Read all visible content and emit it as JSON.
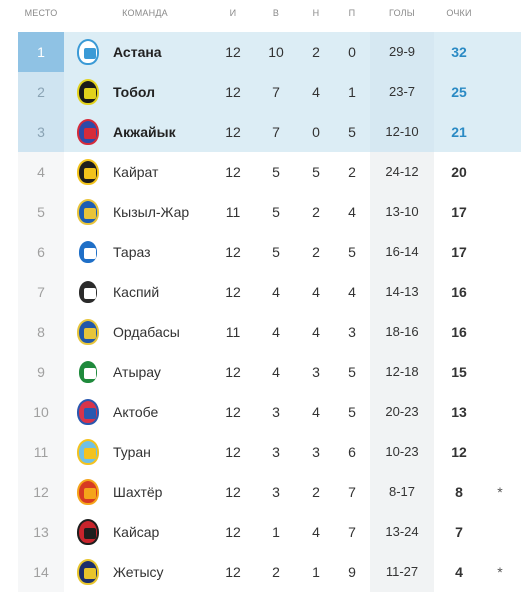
{
  "headers": {
    "place": "МЕСТО",
    "team": "КОМАНДА",
    "games": "И",
    "wins": "В",
    "draws": "Н",
    "losses": "П",
    "goals": "ГОЛЫ",
    "points": "ОЧКИ"
  },
  "rows": [
    {
      "place": "1",
      "team": "Астана",
      "games": "12",
      "wins": "10",
      "draws": "2",
      "losses": "0",
      "goals": "29-9",
      "points": "32",
      "note": "",
      "logo_icon": "astana-logo-icon",
      "logo_colors": [
        "#ffffff",
        "#3a9ad6"
      ]
    },
    {
      "place": "2",
      "team": "Тобол",
      "games": "12",
      "wins": "7",
      "draws": "4",
      "losses": "1",
      "goals": "23-7",
      "points": "25",
      "note": "",
      "logo_icon": "tobol-logo-icon",
      "logo_colors": [
        "#1a1a1a",
        "#e2d21c"
      ]
    },
    {
      "place": "3",
      "team": "Акжайык",
      "games": "12",
      "wins": "7",
      "draws": "0",
      "losses": "5",
      "goals": "12-10",
      "points": "21",
      "note": "",
      "logo_icon": "akzhayik-logo-icon",
      "logo_colors": [
        "#2e4aa8",
        "#d62b3a"
      ]
    },
    {
      "place": "4",
      "team": "Кайрат",
      "games": "12",
      "wins": "5",
      "draws": "5",
      "losses": "2",
      "goals": "24-12",
      "points": "20",
      "note": "",
      "logo_icon": "kairat-logo-icon",
      "logo_colors": [
        "#1e1e1e",
        "#f2c31b"
      ]
    },
    {
      "place": "5",
      "team": "Кызыл-Жар",
      "games": "11",
      "wins": "5",
      "draws": "2",
      "losses": "4",
      "goals": "13-10",
      "points": "17",
      "note": "",
      "logo_icon": "kyzylzhar-logo-icon",
      "logo_colors": [
        "#1d5db3",
        "#e9c43a"
      ]
    },
    {
      "place": "6",
      "team": "Тараз",
      "games": "12",
      "wins": "5",
      "draws": "2",
      "losses": "5",
      "goals": "16-14",
      "points": "17",
      "note": "",
      "logo_icon": "taraz-logo-icon",
      "logo_colors": [
        "#1f6fc7",
        "#ffffff"
      ]
    },
    {
      "place": "7",
      "team": "Каспий",
      "games": "12",
      "wins": "4",
      "draws": "4",
      "losses": "4",
      "goals": "14-13",
      "points": "16",
      "note": "",
      "logo_icon": "kaspiy-logo-icon",
      "logo_colors": [
        "#2b2b2b",
        "#ffffff"
      ]
    },
    {
      "place": "8",
      "team": "Ордабасы",
      "games": "11",
      "wins": "4",
      "draws": "4",
      "losses": "3",
      "goals": "18-16",
      "points": "16",
      "note": "",
      "logo_icon": "ordabasy-logo-icon",
      "logo_colors": [
        "#2157a8",
        "#e7c53b"
      ]
    },
    {
      "place": "9",
      "team": "Атырау",
      "games": "12",
      "wins": "4",
      "draws": "3",
      "losses": "5",
      "goals": "12-18",
      "points": "15",
      "note": "",
      "logo_icon": "atyrau-logo-icon",
      "logo_colors": [
        "#1f8a3c",
        "#ffffff"
      ]
    },
    {
      "place": "10",
      "team": "Актобе",
      "games": "12",
      "wins": "3",
      "draws": "4",
      "losses": "5",
      "goals": "20-23",
      "points": "13",
      "note": "",
      "logo_icon": "aktobe-logo-icon",
      "logo_colors": [
        "#d8344a",
        "#2a58b0"
      ]
    },
    {
      "place": "11",
      "team": "Туран",
      "games": "12",
      "wins": "3",
      "draws": "3",
      "losses": "6",
      "goals": "10-23",
      "points": "12",
      "note": "",
      "logo_icon": "turan-logo-icon",
      "logo_colors": [
        "#6fc0e6",
        "#f3c21f"
      ]
    },
    {
      "place": "12",
      "team": "Шахтёр",
      "games": "12",
      "wins": "3",
      "draws": "2",
      "losses": "7",
      "goals": "8-17",
      "points": "8",
      "note": "*",
      "logo_icon": "shakhter-logo-icon",
      "logo_colors": [
        "#d73a22",
        "#f5a41a"
      ]
    },
    {
      "place": "13",
      "team": "Кайсар",
      "games": "12",
      "wins": "1",
      "draws": "4",
      "losses": "7",
      "goals": "13-24",
      "points": "7",
      "note": "",
      "logo_icon": "kaisar-logo-icon",
      "logo_colors": [
        "#c8242c",
        "#1e1e1e"
      ]
    },
    {
      "place": "14",
      "team": "Жетысу",
      "games": "12",
      "wins": "2",
      "draws": "1",
      "losses": "9",
      "goals": "11-27",
      "points": "4",
      "note": "*",
      "logo_icon": "zhetysu-logo-icon",
      "logo_colors": [
        "#1c2f6b",
        "#e8c52c"
      ]
    }
  ]
}
